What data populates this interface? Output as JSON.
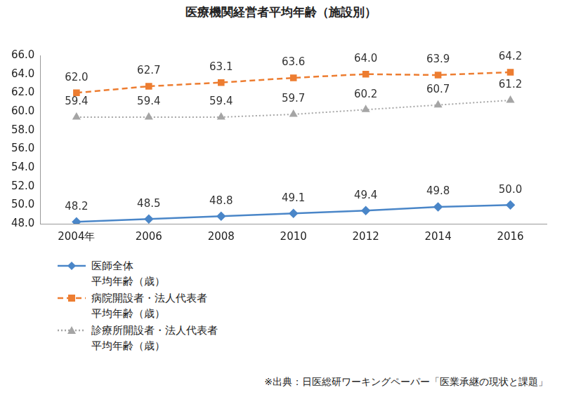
{
  "chart_data": {
    "type": "line",
    "title": "医療機関経営者平均年齢（施設別）",
    "note": "※出典：日医総研ワーキングペーパー「医業承継の現状と課題」",
    "categories": [
      "2004年",
      "2006",
      "2008",
      "2010",
      "2012",
      "2014",
      "2016"
    ],
    "series": [
      {
        "name": "医師全体\n平均年齢（歳）",
        "color": "#4a86c8",
        "marker": "diamond",
        "line_style": "solid",
        "values": [
          48.2,
          48.5,
          48.8,
          49.1,
          49.4,
          49.8,
          50.0
        ],
        "value_labels": [
          "48.2",
          "48.5",
          "48.8",
          "49.1",
          "49.4",
          "49.8",
          "50.0"
        ]
      },
      {
        "name": "病院開設者・法人代表者\n平均年齢（歳）",
        "color": "#ed7d31",
        "marker": "square",
        "line_style": "dashed",
        "values": [
          62.0,
          62.7,
          63.1,
          63.6,
          64.0,
          63.9,
          64.2
        ],
        "value_labels": [
          "62.0",
          "62.7",
          "63.1",
          "63.6",
          "64.0",
          "63.9",
          "64.2"
        ]
      },
      {
        "name": "診療所開設者・法人代表者\n平均年齢（歳）",
        "color": "#a5a5a5",
        "marker": "triangle",
        "line_style": "dotted",
        "values": [
          59.4,
          59.4,
          59.4,
          59.7,
          60.2,
          60.7,
          61.2
        ],
        "value_labels": [
          "59.4",
          "59.4",
          "59.4",
          "59.7",
          "60.2",
          "60.7",
          "61.2"
        ]
      }
    ],
    "ylim": [
      48,
      66
    ],
    "yticks": [
      {
        "value": 48,
        "label": "48.0"
      },
      {
        "value": 50,
        "label": "50.0"
      },
      {
        "value": 52,
        "label": "52.0"
      },
      {
        "value": 54,
        "label": "54.0"
      },
      {
        "value": 56,
        "label": "56.0"
      },
      {
        "value": 58,
        "label": "58.0"
      },
      {
        "value": 60,
        "label": "60.0"
      },
      {
        "value": 62,
        "label": "62.0"
      },
      {
        "value": 64,
        "label": "64.0"
      },
      {
        "value": 66,
        "label": "66.0"
      }
    ],
    "grid": false,
    "legend": "bottom-left",
    "data_labels": true
  }
}
